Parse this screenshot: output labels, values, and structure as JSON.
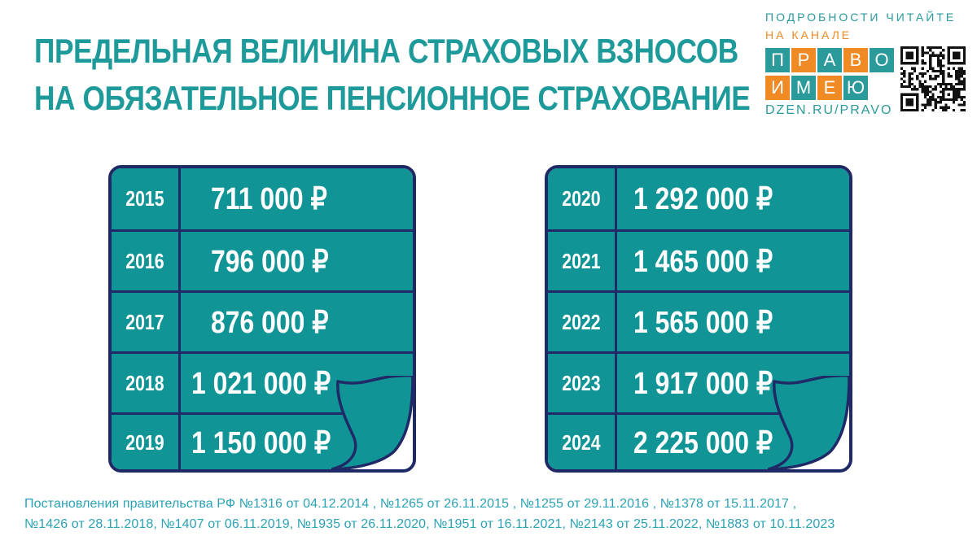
{
  "title": {
    "line1": "ПРЕДЕЛЬНАЯ ВЕЛИЧИНА СТРАХОВЫХ ВЗНОСОВ",
    "line2": "НА ОБЯЗАТЕЛЬНОЕ ПЕНСИОННОЕ СТРАХОВАНИЕ"
  },
  "brand": {
    "line1": "ПОДРОБНОСТИ ЧИТАЙТЕ",
    "line2": "НА КАНАЛЕ",
    "word1": [
      {
        "letter": "П",
        "color": "#2a9a9b"
      },
      {
        "letter": "Р",
        "color": "#f08a24"
      },
      {
        "letter": "А",
        "color": "#2a9a9b"
      },
      {
        "letter": "В",
        "color": "#f08a24"
      },
      {
        "letter": "О",
        "color": "#2a9a9b"
      }
    ],
    "word2": [
      {
        "letter": "И",
        "color": "#f08a24"
      },
      {
        "letter": "М",
        "color": "#2a9a9b"
      },
      {
        "letter": "Е",
        "color": "#f08a24"
      },
      {
        "letter": "Ю",
        "color": "#2a9a9b"
      }
    ],
    "url": "DZEN.RU/PRAVO"
  },
  "table_left": [
    {
      "year": "2015",
      "amount": "711 000 ₽"
    },
    {
      "year": "2016",
      "amount": "796 000 ₽"
    },
    {
      "year": "2017",
      "amount": "876 000 ₽"
    },
    {
      "year": "2018",
      "amount": "1 021 000 ₽"
    },
    {
      "year": "2019",
      "amount": "1 150 000 ₽"
    }
  ],
  "table_right": [
    {
      "year": "2020",
      "amount": "1 292 000 ₽"
    },
    {
      "year": "2021",
      "amount": "1 465 000 ₽"
    },
    {
      "year": "2022",
      "amount": "1 565 000 ₽"
    },
    {
      "year": "2023",
      "amount": "1 917 000 ₽"
    },
    {
      "year": "2024",
      "amount": "2 225 000 ₽"
    }
  ],
  "footer": {
    "line1": "Постановления правительства РФ №1316 от 04.12.2014 , №1265 от 26.11.2015 , №1255 от 29.11.2016 , №1378 от 15.11.2017 ,",
    "line2": "№1426 от 28.11.2018, №1407 от 06.11.2019, №1935 от 26.11.2020, №1951 от 16.11.2021, №2143 от 25.11.2022, №1883 от 10.11.2023"
  },
  "colors": {
    "title": "#1e9a9b",
    "cell": "#109496",
    "border": "#1f2966",
    "orange": "#f08a24",
    "footer": "#2aa2b4"
  }
}
